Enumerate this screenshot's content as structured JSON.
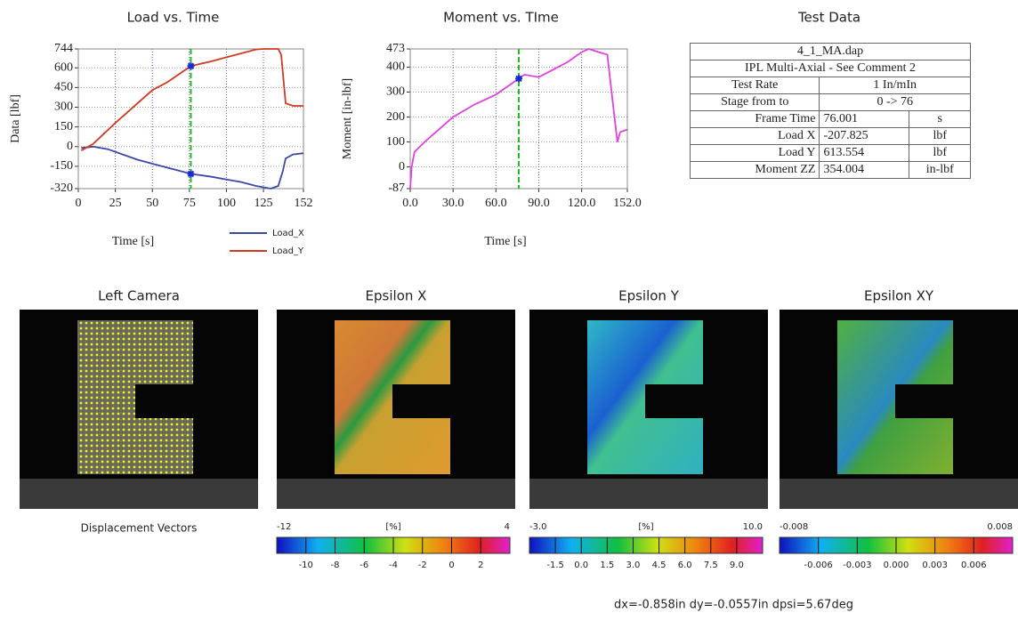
{
  "chart_data": [
    {
      "type": "line",
      "title": "Load vs. Time",
      "x_label": "Time [s]",
      "y_label": "Data [lbf]",
      "xlim": [
        0,
        152
      ],
      "xticks": [
        0,
        25,
        50,
        75,
        100,
        125,
        152
      ],
      "ylim": [
        -320,
        744
      ],
      "yticks": [
        -320,
        -150,
        0,
        150,
        300,
        450,
        600,
        744
      ],
      "grid": true,
      "cursor_x": 76,
      "series": [
        {
          "name": "Load_X",
          "color": "#3a48a8",
          "x": [
            2,
            10,
            20,
            30,
            40,
            50,
            60,
            76,
            90,
            100,
            110,
            120,
            130,
            135,
            138,
            140,
            145,
            152
          ],
          "values": [
            -10,
            0,
            -20,
            -60,
            -100,
            -130,
            -160,
            -207.825,
            -230,
            -250,
            -270,
            -300,
            -320,
            -300,
            -190,
            -90,
            -60,
            -50
          ]
        },
        {
          "name": "Load_Y",
          "color": "#d03a20",
          "x": [
            2,
            10,
            25,
            40,
            50,
            60,
            76,
            90,
            100,
            110,
            120,
            125,
            135,
            137,
            140,
            145,
            152
          ],
          "values": [
            -30,
            20,
            180,
            330,
            430,
            490,
            613.554,
            650,
            680,
            710,
            740,
            744,
            744,
            700,
            330,
            310,
            310
          ]
        }
      ]
    },
    {
      "type": "line",
      "title": "Moment vs. TIme",
      "x_label": "Time [s]",
      "y_label": "Moment [in-lbf]",
      "xlim": [
        0,
        152
      ],
      "xticks": [
        {
          "value": 0,
          "label": "0.0"
        },
        {
          "value": 30,
          "label": "30.0"
        },
        {
          "value": 60,
          "label": "60.0"
        },
        {
          "value": 90,
          "label": "90.0"
        },
        {
          "value": 120,
          "label": "120.0"
        },
        {
          "value": 152,
          "label": "152.0"
        }
      ],
      "ylim": [
        -87,
        473
      ],
      "yticks": [
        -87,
        0,
        100,
        200,
        300,
        400,
        473
      ],
      "grid": true,
      "cursor_x": 76,
      "series": [
        {
          "color": "#e040e0",
          "x": [
            0,
            1,
            3,
            10,
            20,
            30,
            45,
            60,
            70,
            76,
            80,
            90,
            100,
            110,
            120,
            125,
            132,
            138,
            142,
            145,
            147,
            152
          ],
          "values": [
            -87,
            0,
            60,
            100,
            150,
            200,
            250,
            290,
            330,
            354.004,
            370,
            360,
            390,
            420,
            460,
            473,
            460,
            450,
            250,
            100,
            140,
            150
          ]
        }
      ]
    }
  ],
  "table": {
    "title": "Test Data",
    "rows": [
      [
        "4_1_MA.dap"
      ],
      [
        "IPL Multi-Axial - See Comment 2"
      ],
      [
        "Test Rate",
        "1 In/mIn"
      ],
      [
        "Stage from to",
        "0 -> 76"
      ],
      [
        "Frame Time",
        "76.001",
        "s"
      ],
      [
        "Load X",
        "-207.825",
        "lbf"
      ],
      [
        "Load Y",
        "613.554",
        "lbf"
      ],
      [
        "Moment ZZ",
        "354.004",
        "in-lbf"
      ]
    ]
  },
  "panels": [
    {
      "title": "Left Camera",
      "caption": "Displacement Vectors"
    },
    {
      "title": "Epsilon X",
      "colorbar": {
        "min": "-12",
        "unit": "[%]",
        "max": "4",
        "ticks": [
          "-10",
          "-8",
          "-6",
          "-4",
          "-2",
          "0",
          "2"
        ]
      }
    },
    {
      "title": "Epsilon Y",
      "colorbar": {
        "min": "-3.0",
        "unit": "[%]",
        "max": "10.0",
        "ticks": [
          "-1.5",
          "0.0",
          "1.5",
          "3.0",
          "4.5",
          "6.0",
          "7.5",
          "9.0"
        ]
      }
    },
    {
      "title": "Epsilon XY",
      "colorbar": {
        "min": "-0.008",
        "max": "0.008",
        "ticks": [
          "-0.006",
          "-0.003",
          "0.000",
          "0.003",
          "0.006"
        ]
      }
    }
  ],
  "footer": "dx=-0.858in dy=-0.0557in dpsi=5.67deg"
}
